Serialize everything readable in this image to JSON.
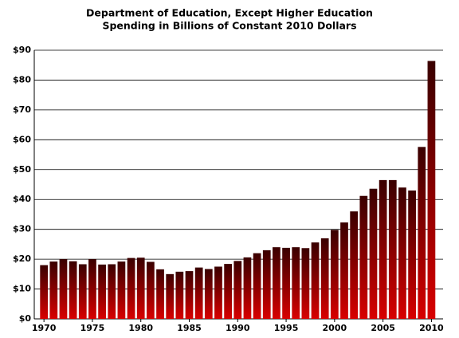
{
  "chart_data": {
    "type": "bar",
    "title": "Department of Education, Except Higher Education",
    "subtitle": "Spending in Billions of Constant 2010 Dollars",
    "x": [
      1970,
      1971,
      1972,
      1973,
      1974,
      1975,
      1976,
      1977,
      1978,
      1979,
      1980,
      1981,
      1982,
      1983,
      1984,
      1985,
      1986,
      1987,
      1988,
      1989,
      1990,
      1991,
      1992,
      1993,
      1994,
      1995,
      1996,
      1997,
      1998,
      1999,
      2000,
      2001,
      2002,
      2003,
      2004,
      2005,
      2006,
      2007,
      2008,
      2009,
      2010
    ],
    "values": [
      18,
      19.2,
      20,
      19.3,
      18.3,
      20,
      18.2,
      18.3,
      19.2,
      20.4,
      20.5,
      19.1,
      16.6,
      15,
      15.8,
      16,
      17.2,
      16.7,
      17.5,
      18.4,
      19.4,
      20.6,
      22,
      23,
      24,
      23.8,
      24,
      23.7,
      25.6,
      27,
      29.8,
      32.3,
      36,
      41.2,
      43.6,
      46.5,
      46.5,
      44,
      43,
      57.6,
      86.4
    ],
    "color_top": "#3a0000",
    "color_bottom": "#d80000",
    "xlim": [
      1969,
      2011.2
    ],
    "xticks": [
      1970,
      1975,
      1980,
      1985,
      1990,
      1995,
      2000,
      2005,
      2010
    ],
    "ylim": [
      0,
      90
    ],
    "yticks": [
      {
        "value": 0,
        "label": "$0"
      },
      {
        "value": 10,
        "label": "$10"
      },
      {
        "value": 20,
        "label": "$20"
      },
      {
        "value": 30,
        "label": "$30"
      },
      {
        "value": 40,
        "label": "$40"
      },
      {
        "value": 50,
        "label": "$50"
      },
      {
        "value": 60,
        "label": "$60"
      },
      {
        "value": 70,
        "label": "$70"
      },
      {
        "value": 80,
        "label": "$80"
      },
      {
        "value": 90,
        "label": "$90"
      }
    ],
    "grid": true
  }
}
